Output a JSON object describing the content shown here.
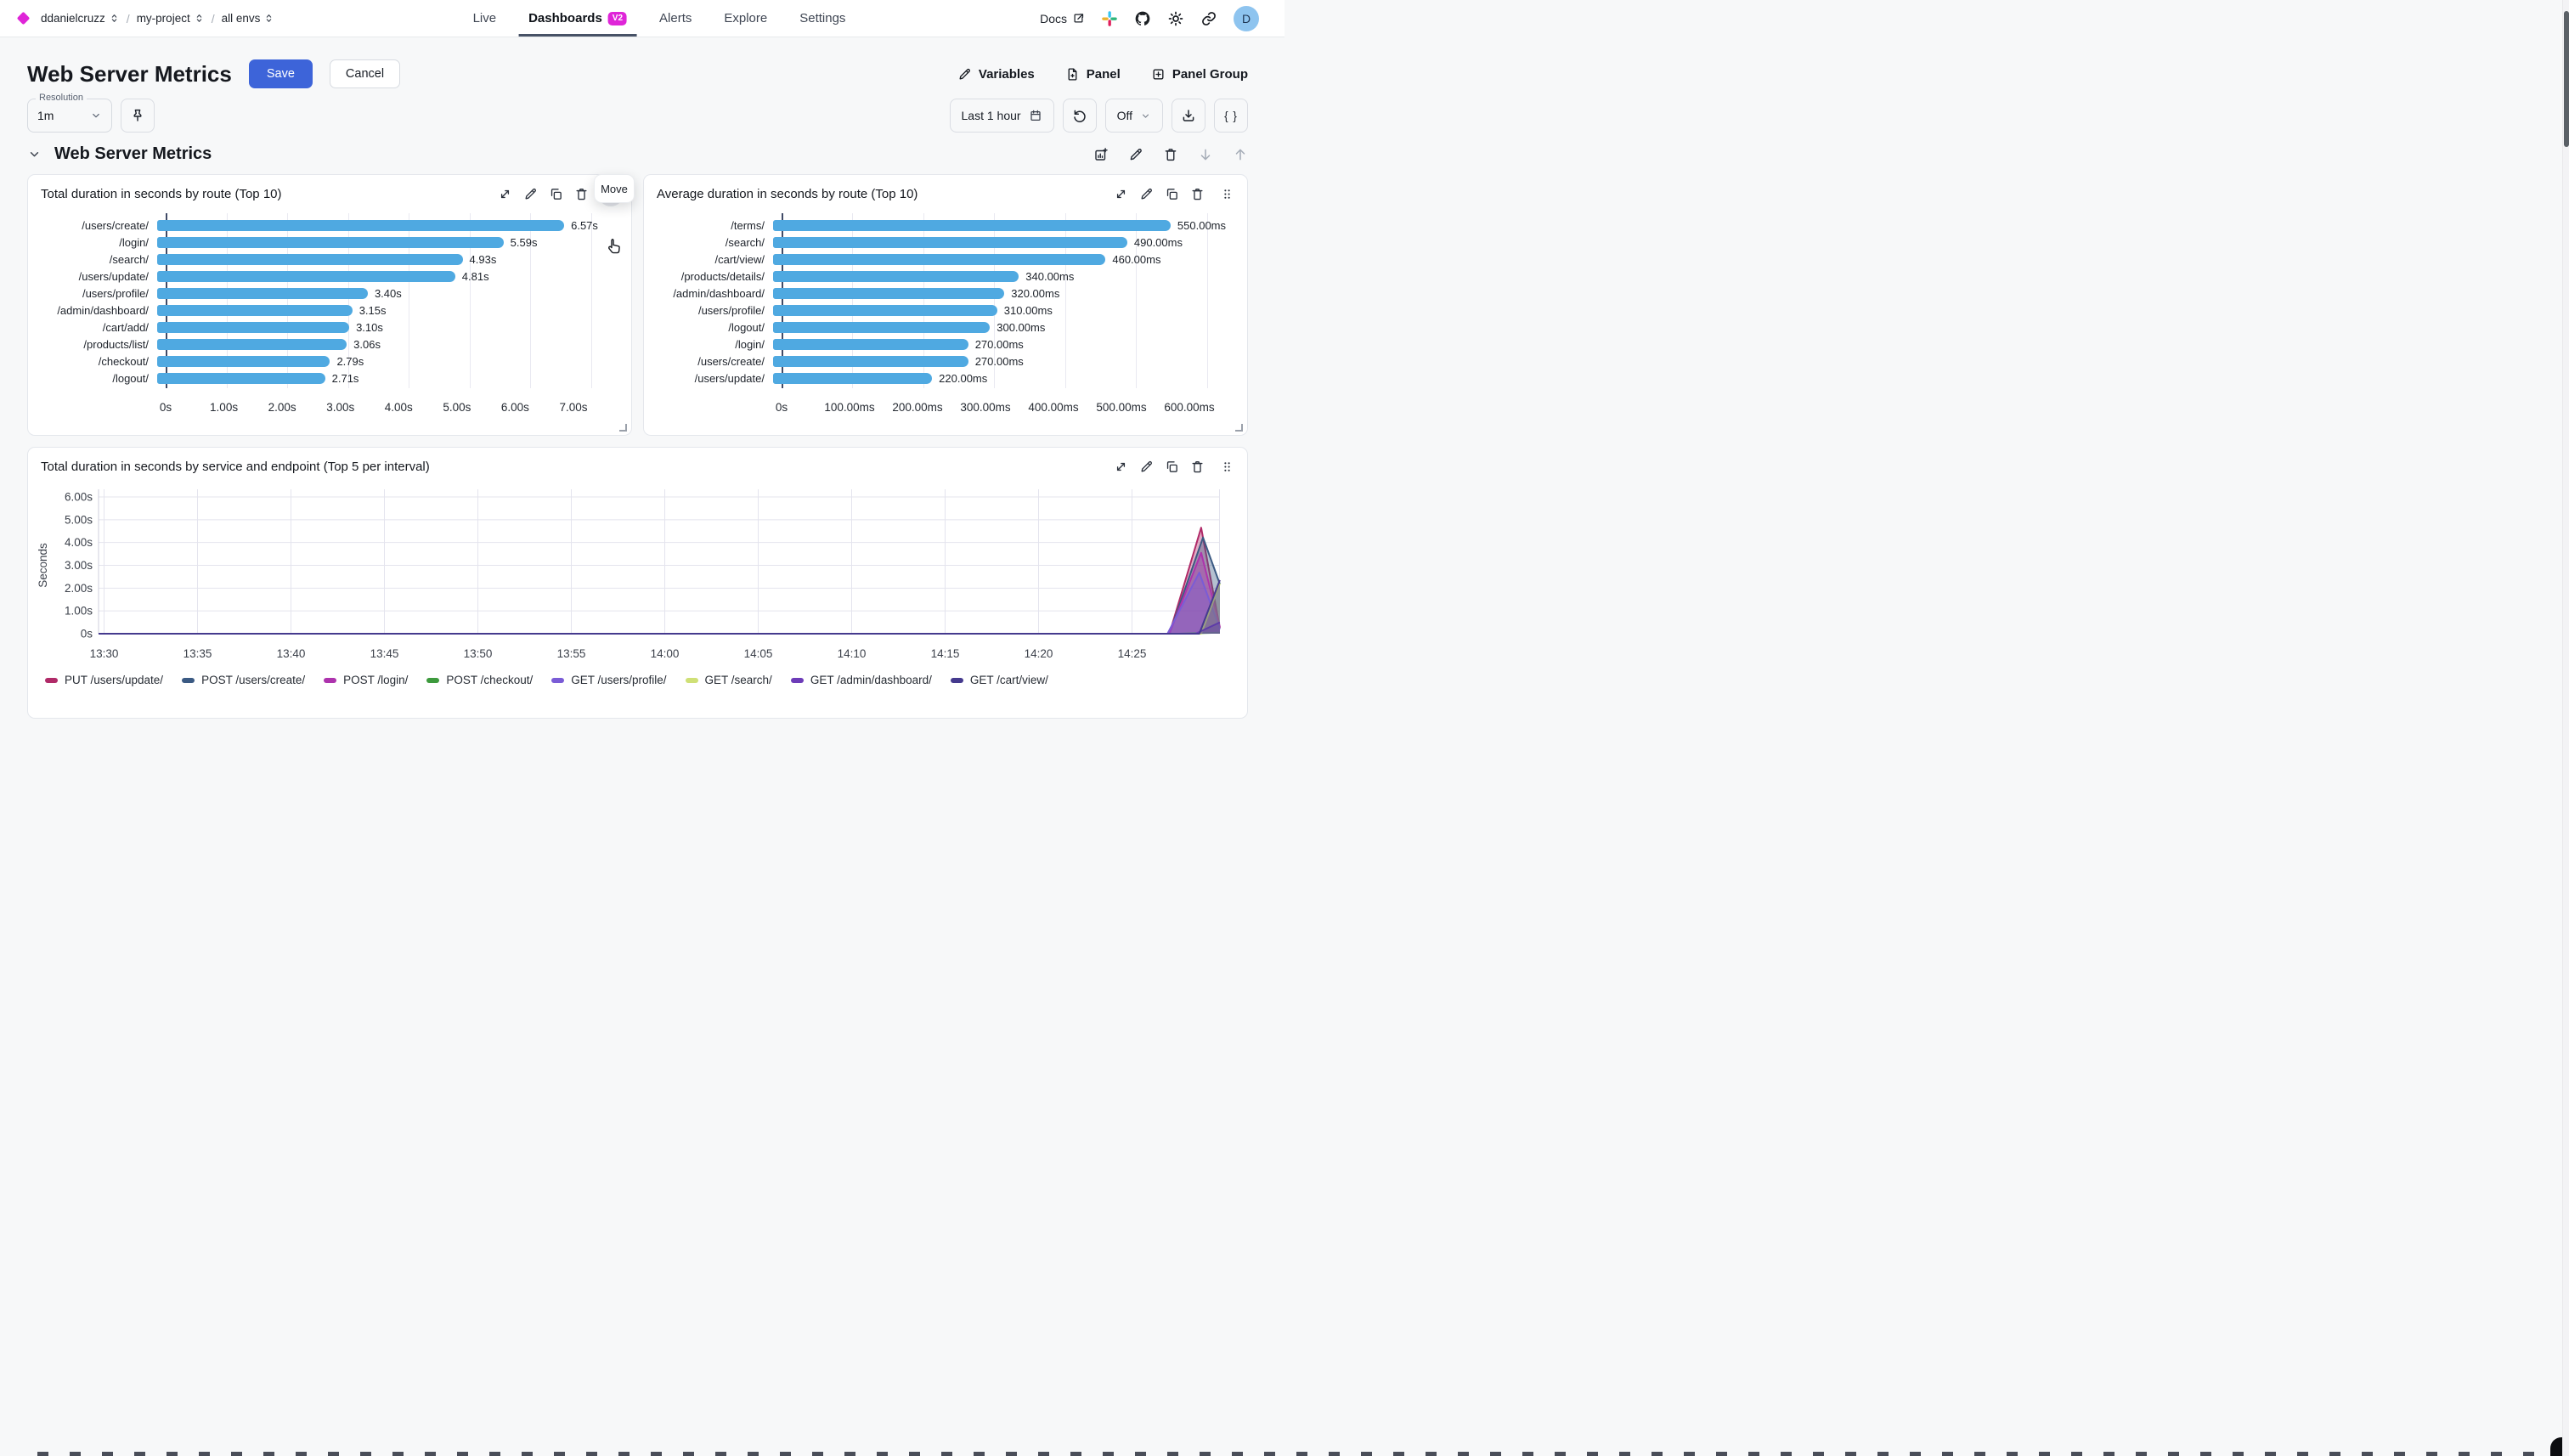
{
  "topbar": {
    "org": "ddanielcruzz",
    "project": "my-project",
    "env": "all envs",
    "separator": "/",
    "nav": [
      {
        "label": "Live"
      },
      {
        "label": "Dashboards",
        "badge": "V2"
      },
      {
        "label": "Alerts"
      },
      {
        "label": "Explore"
      },
      {
        "label": "Settings"
      }
    ],
    "docs_label": "Docs",
    "avatar_initial": "D"
  },
  "header": {
    "title": "Web Server Metrics",
    "save_label": "Save",
    "cancel_label": "Cancel",
    "variables_label": "Variables",
    "panel_label": "Panel",
    "panel_group_label": "Panel Group"
  },
  "toolbar": {
    "resolution_label": "Resolution",
    "resolution_value": "1m",
    "time_range": "Last 1 hour",
    "refresh_interval": "Off",
    "braces": "{ }"
  },
  "group": {
    "title": "Web Server Metrics",
    "move_tooltip": "Move"
  },
  "colors": {
    "accent_magenta": "#df25d8",
    "primary_blue": "#3d64d9",
    "bar_blue": "#4fa9e1",
    "active_tab_underline": "#475266"
  },
  "icons": {
    "logo": "diamond",
    "breadcrumb": "chevrons-up-down",
    "docs": "external-link",
    "topbar": [
      "slack-icon",
      "github-icon",
      "sun-icon",
      "link-icon"
    ],
    "panel_header": [
      "expand-icon",
      "pencil-icon",
      "copy-icon",
      "trash-icon",
      "drag-handle-icon"
    ],
    "group_header": [
      "add-panel-icon",
      "pencil-icon",
      "trash-icon",
      "arrow-down-icon",
      "arrow-up-icon"
    ]
  },
  "chart_data": [
    {
      "type": "bar",
      "orientation": "horizontal",
      "title": "Total duration in seconds by route (Top 10)",
      "categories": [
        "/users/create/",
        "/login/",
        "/search/",
        "/users/update/",
        "/users/profile/",
        "/admin/dashboard/",
        "/cart/add/",
        "/products/list/",
        "/checkout/",
        "/logout/"
      ],
      "values": [
        6.57,
        5.59,
        4.93,
        4.81,
        3.4,
        3.15,
        3.1,
        3.06,
        2.79,
        2.71
      ],
      "value_labels": [
        "6.57s",
        "5.59s",
        "4.93s",
        "4.81s",
        "3.40s",
        "3.15s",
        "3.10s",
        "3.06s",
        "2.79s",
        "2.71s"
      ],
      "tick_values": [
        0,
        1,
        2,
        3,
        4,
        5,
        6,
        7
      ],
      "tick_labels": [
        "0s",
        "1.00s",
        "2.00s",
        "3.00s",
        "4.00s",
        "5.00s",
        "6.00s",
        "7.00s"
      ],
      "xmax": 7.35,
      "bar_color": "#4fa9e1",
      "grid": true
    },
    {
      "type": "bar",
      "orientation": "horizontal",
      "title": "Average duration in seconds by route (Top 10)",
      "categories": [
        "/terms/",
        "/search/",
        "/cart/view/",
        "/products/details/",
        "/admin/dashboard/",
        "/users/profile/",
        "/logout/",
        "/login/",
        "/users/create/",
        "/users/update/"
      ],
      "values": [
        550,
        490,
        460,
        340,
        320,
        310,
        300,
        270,
        270,
        220
      ],
      "value_labels": [
        "550.00ms",
        "490.00ms",
        "460.00ms",
        "340.00ms",
        "320.00ms",
        "310.00ms",
        "300.00ms",
        "270.00ms",
        "270.00ms",
        "220.00ms"
      ],
      "tick_values": [
        0,
        100,
        200,
        300,
        400,
        500,
        600
      ],
      "tick_labels": [
        "0s",
        "100.00ms",
        "200.00ms",
        "300.00ms",
        "400.00ms",
        "500.00ms",
        "600.00ms"
      ],
      "xmax": 630,
      "bar_color": "#4fa9e1",
      "grid": true
    },
    {
      "type": "area",
      "title": "Total duration in seconds by service and endpoint (Top 5 per interval)",
      "ylabel": "Seconds",
      "y_tick_values": [
        6,
        5,
        4,
        3,
        2,
        1,
        0
      ],
      "y_tick_labels": [
        "6.00s",
        "5.00s",
        "4.00s",
        "3.00s",
        "2.00s",
        "1.00s",
        "0s"
      ],
      "ymax": 6.2,
      "x_tick_minutes": [
        0,
        5,
        10,
        15,
        20,
        25,
        30,
        35,
        40,
        45,
        50,
        55
      ],
      "x_tick_labels": [
        "13:30",
        "13:35",
        "13:40",
        "13:45",
        "13:50",
        "13:55",
        "14:00",
        "14:05",
        "14:10",
        "14:15",
        "14:20",
        "14:25"
      ],
      "x_start": "13:30",
      "x_end_minutes": 59.7,
      "grid": true,
      "legend_position": "bottom",
      "series": [
        {
          "name": "PUT /users/update/",
          "color": "#b02a68",
          "points": [
            [
              0,
              0
            ],
            [
              57,
              0
            ],
            [
              58.7,
              4.65
            ],
            [
              59.7,
              0.25
            ]
          ]
        },
        {
          "name": "POST /users/create/",
          "color": "#3b5a83",
          "points": [
            [
              0,
              0
            ],
            [
              57,
              0
            ],
            [
              58.8,
              4.22
            ],
            [
              59.7,
              2.18
            ]
          ]
        },
        {
          "name": "POST /login/",
          "color": "#ad33ad",
          "points": [
            [
              0,
              0
            ],
            [
              57,
              0
            ],
            [
              58.7,
              3.55
            ],
            [
              59.7,
              0.3
            ]
          ]
        },
        {
          "name": "POST /checkout/",
          "color": "#3d9a3d",
          "points": [
            [
              0,
              0
            ],
            [
              57.5,
              0
            ],
            [
              59.7,
              0.05
            ]
          ]
        },
        {
          "name": "GET /users/profile/",
          "color": "#7a5cd6",
          "points": [
            [
              0,
              0
            ],
            [
              56.9,
              0
            ],
            [
              58.6,
              2.68
            ],
            [
              59.7,
              0.2
            ]
          ]
        },
        {
          "name": "GET /search/",
          "color": "#cfe076",
          "points": [
            [
              0,
              0
            ],
            [
              58.7,
              0
            ],
            [
              59.7,
              2.2
            ]
          ]
        },
        {
          "name": "GET /admin/dashboard/",
          "color": "#6d3cb8",
          "points": [
            [
              0,
              0
            ],
            [
              58.4,
              0
            ],
            [
              59.7,
              0.5
            ]
          ]
        },
        {
          "name": "GET /cart/view/",
          "color": "#453a8e",
          "points": [
            [
              0,
              0
            ],
            [
              58.6,
              0
            ],
            [
              59.7,
              2.35
            ]
          ]
        }
      ]
    }
  ]
}
